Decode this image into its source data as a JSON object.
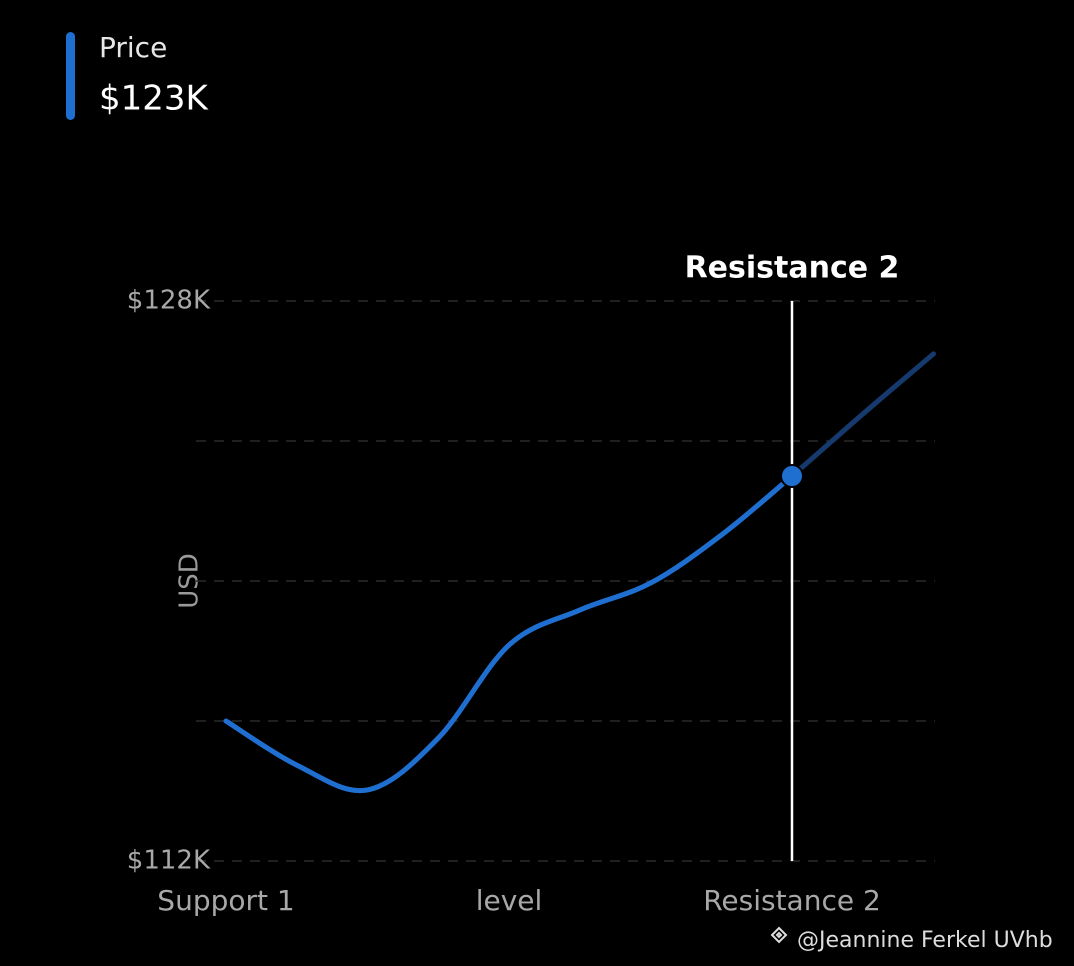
{
  "chart_data": {
    "type": "line",
    "y_label": "USD",
    "x": [
      0,
      0.25,
      0.5,
      0.75,
      1,
      1.25,
      1.5,
      1.75,
      2,
      2.25,
      2.5
    ],
    "series": [
      {
        "name": "Price",
        "color": "#1f6fd1",
        "future_color": "#163a6e",
        "values": [
          116000,
          114740,
          114030,
          115510,
          118170,
          119170,
          119940,
          121310,
          123000,
          124770,
          126490
        ]
      }
    ],
    "crosshair": {
      "label": "Resistance 2",
      "x": 2,
      "value": 123000,
      "value_label": "$123K"
    },
    "xlim": [
      0,
      2.5
    ],
    "xticks": [
      {
        "value": 0,
        "label": "Support 1"
      },
      {
        "value": 1,
        "label": "level"
      },
      {
        "value": 2,
        "label": "Resistance 2"
      }
    ],
    "ylim": [
      112000,
      128000
    ],
    "yticks": [
      {
        "value": 112000,
        "label": "$112K"
      },
      {
        "value": 116000,
        "label": null
      },
      {
        "value": 120000,
        "label": null
      },
      {
        "value": 124000,
        "label": null
      },
      {
        "value": 128000,
        "label": "$128K"
      }
    ],
    "grid": true,
    "watermark": "@Jeannine Ferkel UVhb"
  }
}
